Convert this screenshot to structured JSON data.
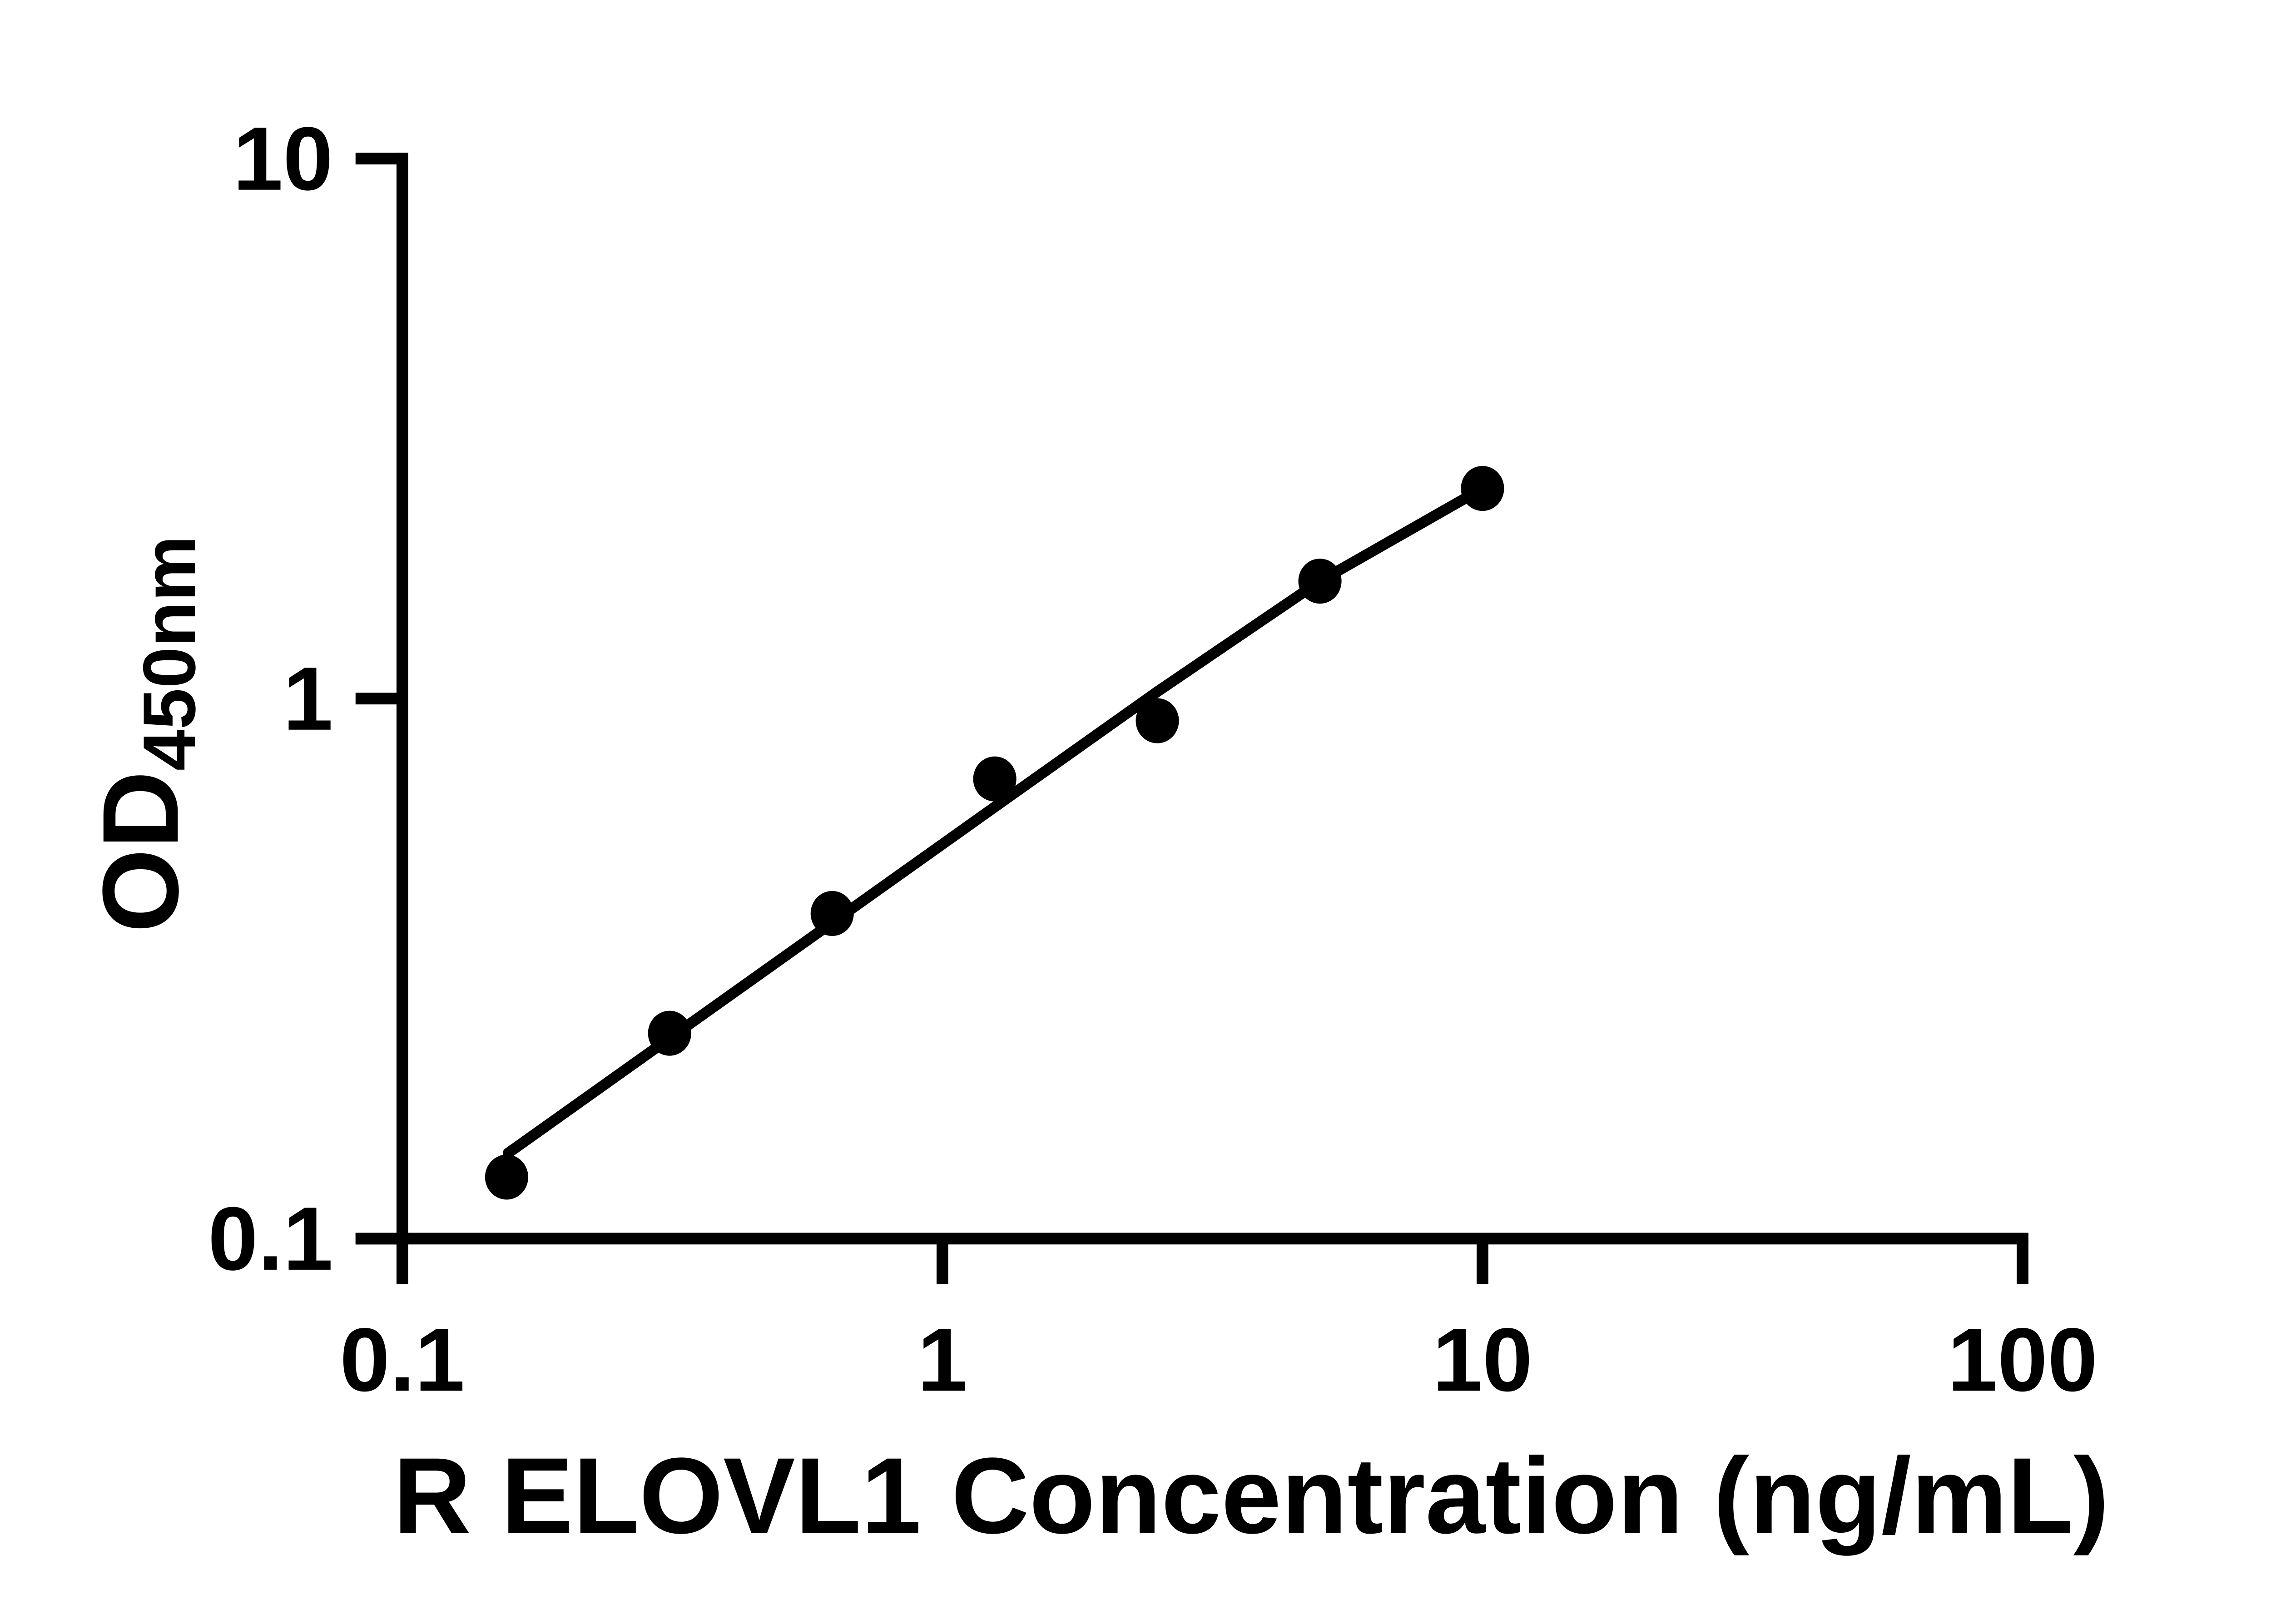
{
  "figure": {
    "background_color": "#ffffff",
    "foreground_color": "#000000"
  },
  "chart_data": {
    "type": "scatter",
    "title": "",
    "xlabel": "R ELOVL1 Concentration (ng/mL)",
    "ylabel": "OD",
    "ylabel_subscript": "450nm",
    "xscale": "log",
    "yscale": "log",
    "xlim": [
      0.1,
      100
    ],
    "ylim": [
      0.1,
      10
    ],
    "grid": false,
    "legend_position": "none",
    "x_ticks": [
      0.1,
      1,
      10,
      100
    ],
    "x_tick_labels": [
      "0.1",
      "1",
      "10",
      "100"
    ],
    "y_ticks": [
      0.1,
      1,
      10
    ],
    "y_tick_labels": [
      "0.1",
      "1",
      "10"
    ],
    "series": [
      {
        "name": "standard-curve-points",
        "marker": "filled-circle",
        "color": "#000000",
        "x": [
          0.156,
          0.3125,
          0.625,
          1.25,
          2.5,
          5,
          10
        ],
        "y": [
          0.13,
          0.24,
          0.4,
          0.71,
          0.91,
          1.65,
          2.45
        ]
      }
    ],
    "fit_line": {
      "name": "fit-line",
      "color": "#000000",
      "points": [
        [
          0.157,
          0.144
        ],
        [
          1.25,
          0.63
        ],
        [
          2.5,
          1.03
        ],
        [
          5,
          1.65
        ],
        [
          10,
          2.45
        ]
      ]
    }
  }
}
